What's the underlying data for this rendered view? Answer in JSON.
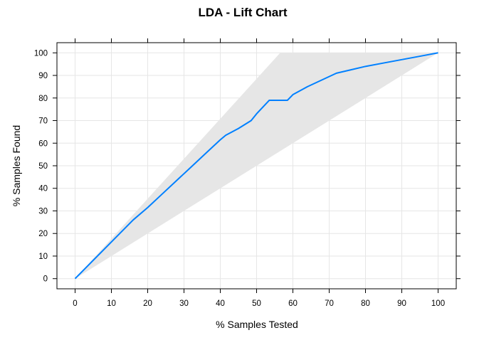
{
  "chart_data": {
    "type": "line",
    "title": "LDA - Lift Chart",
    "xlabel": "% Samples Tested",
    "ylabel": "% Samples Found",
    "xlim": [
      -5,
      105
    ],
    "ylim": [
      -4.5,
      104.5
    ],
    "x_ticks": [
      0,
      10,
      20,
      30,
      40,
      50,
      60,
      70,
      80,
      90,
      100
    ],
    "y_ticks": [
      0,
      10,
      20,
      30,
      40,
      50,
      60,
      70,
      80,
      90,
      100
    ],
    "grid": true,
    "colors": {
      "line": "#0080FF",
      "band": "#E6E6E6",
      "grid": "#E6E6E6",
      "frame": "#000000"
    },
    "band": {
      "points": [
        [
          0,
          0
        ],
        [
          56.5,
          100
        ],
        [
          100,
          100
        ],
        [
          0,
          0
        ]
      ]
    },
    "series": [
      {
        "x": [
          0,
          4,
          8,
          12,
          16,
          20,
          24,
          28,
          32,
          36,
          40,
          41.5,
          45,
          48.5,
          50,
          53.5,
          56,
          58.5,
          60,
          64,
          68,
          72,
          76,
          80,
          85,
          90,
          95,
          100
        ],
        "y": [
          0,
          6.5,
          13,
          19.5,
          26,
          31.5,
          37.5,
          43.5,
          49.5,
          55.5,
          61.5,
          63.5,
          66.5,
          70,
          73,
          79,
          79,
          79,
          81.5,
          85,
          88,
          91,
          92.5,
          94,
          95.5,
          97,
          98.5,
          100
        ]
      }
    ]
  }
}
